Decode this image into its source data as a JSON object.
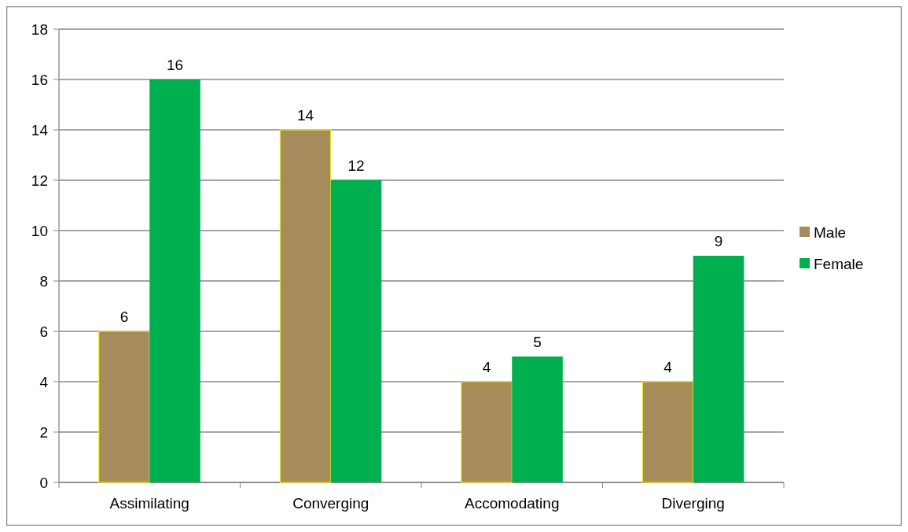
{
  "chart_data": {
    "type": "bar",
    "categories": [
      "Assimilating",
      "Converging",
      "Accomodating",
      "Diverging"
    ],
    "series": [
      {
        "name": "Male",
        "color": "#a68b5b",
        "values": [
          6,
          14,
          4,
          4
        ]
      },
      {
        "name": "Female",
        "color": "#00b050",
        "values": [
          16,
          12,
          5,
          9
        ]
      }
    ],
    "ylim": [
      0,
      18
    ],
    "yticks": [
      0,
      2,
      4,
      6,
      8,
      10,
      12,
      14,
      16,
      18
    ],
    "grid": "y",
    "legend": "right",
    "data_labels": true
  }
}
